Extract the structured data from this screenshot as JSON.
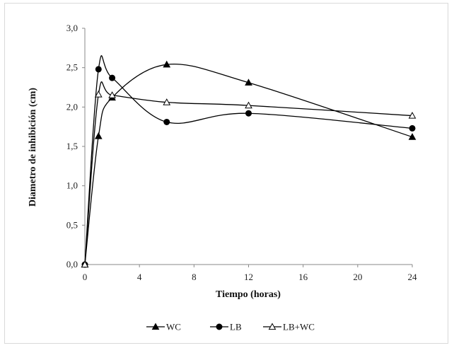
{
  "chart_data": {
    "type": "line",
    "xlabel": "Tiempo (horas)",
    "ylabel": "Diametro de inhibición  (cm)",
    "xlim": [
      0,
      24
    ],
    "ylim": [
      0,
      3
    ],
    "x_ticks": [
      "0",
      "4",
      "8",
      "12",
      "16",
      "20",
      "24"
    ],
    "y_ticks": [
      "0,0",
      "0,5",
      "1,0",
      "1,5",
      "2,0",
      "2,5",
      "3,0"
    ],
    "smooth": true,
    "grid": false,
    "legend_position": "bottom",
    "series": [
      {
        "name": "WC",
        "marker": "filled-triangle",
        "color": "#000000",
        "x": [
          0,
          1,
          2,
          6,
          12,
          24
        ],
        "y": [
          0.0,
          1.63,
          2.12,
          2.54,
          2.31,
          1.62
        ]
      },
      {
        "name": "LB",
        "marker": "filled-circle",
        "color": "#000000",
        "x": [
          0,
          1,
          2,
          6,
          12,
          24
        ],
        "y": [
          0.0,
          2.48,
          2.37,
          1.81,
          1.92,
          1.73
        ]
      },
      {
        "name": "LB+WC",
        "marker": "open-triangle",
        "color": "#000000",
        "x": [
          0,
          1,
          2,
          6,
          12,
          24
        ],
        "y": [
          0.0,
          2.16,
          2.15,
          2.06,
          2.02,
          1.89
        ]
      }
    ]
  }
}
